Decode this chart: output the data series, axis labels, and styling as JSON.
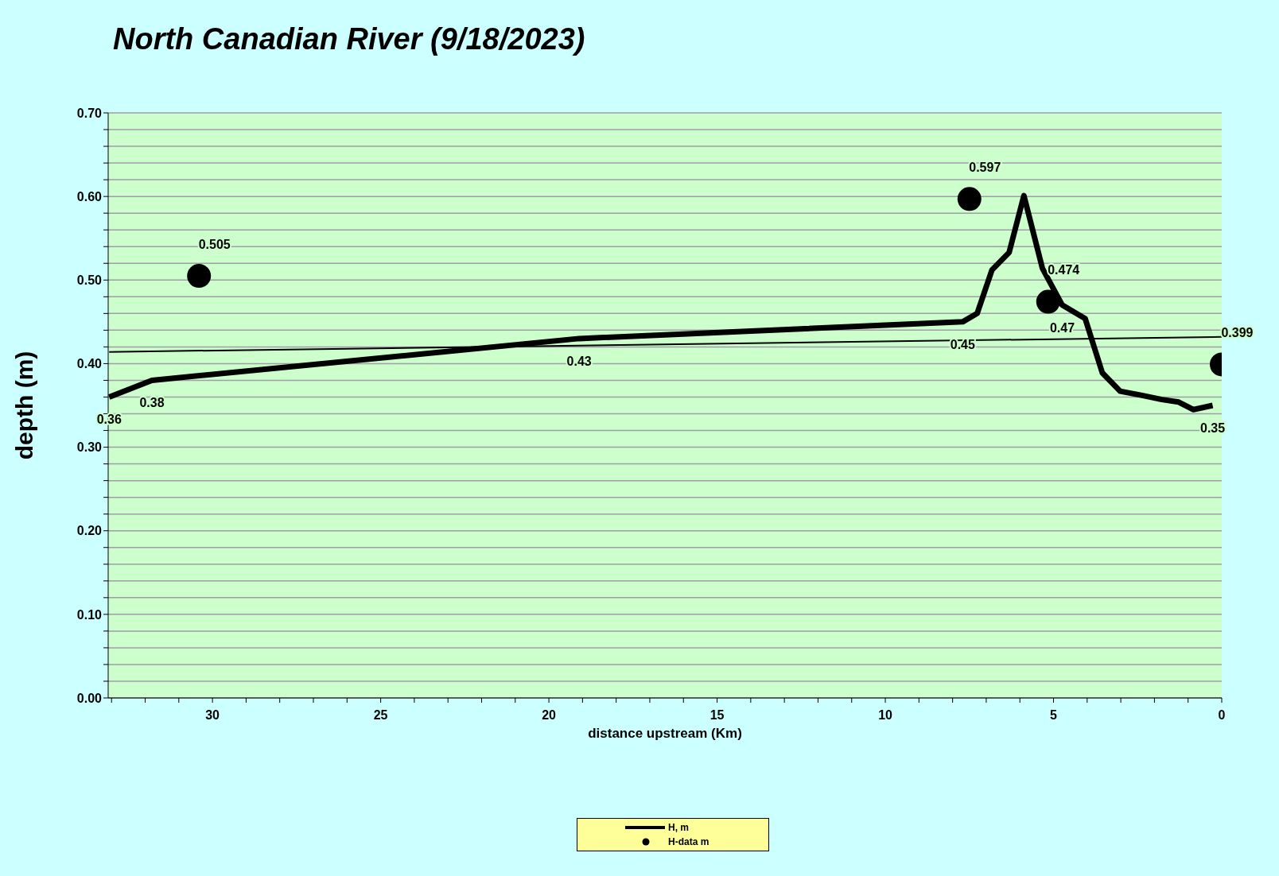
{
  "chart_data": {
    "type": "line",
    "title": "North Canadian River (9/18/2023)",
    "xlabel": "distance upstream (Km)",
    "ylabel": "depth (m)",
    "xlim": [
      33.1,
      0
    ],
    "xticks": [
      {
        "value": 33,
        "label": null
      },
      {
        "value": 32,
        "label": null
      },
      {
        "value": 31,
        "label": null
      },
      30,
      {
        "value": 29,
        "label": null
      },
      {
        "value": 28,
        "label": null
      },
      {
        "value": 27,
        "label": null
      },
      {
        "value": 26,
        "label": null
      },
      25,
      {
        "value": 24,
        "label": null
      },
      {
        "value": 23,
        "label": null
      },
      {
        "value": 22,
        "label": null
      },
      {
        "value": 21,
        "label": null
      },
      20,
      {
        "value": 19,
        "label": null
      },
      {
        "value": 18,
        "label": null
      },
      {
        "value": 17,
        "label": null
      },
      {
        "value": 16,
        "label": null
      },
      15,
      {
        "value": 14,
        "label": null
      },
      {
        "value": 13,
        "label": null
      },
      {
        "value": 12,
        "label": null
      },
      {
        "value": 11,
        "label": null
      },
      10,
      {
        "value": 9,
        "label": null
      },
      {
        "value": 8,
        "label": null
      },
      {
        "value": 7,
        "label": null
      },
      {
        "value": 6,
        "label": null
      },
      5,
      {
        "value": 4,
        "label": null
      },
      {
        "value": 3,
        "label": null
      },
      {
        "value": 2,
        "label": null
      },
      {
        "value": 1,
        "label": null
      },
      0
    ],
    "ylim": [
      0,
      0.7
    ],
    "yticks": [
      {
        "value": 0,
        "label": "0.00"
      },
      {
        "value": 0.02,
        "label": null
      },
      {
        "value": 0.04,
        "label": null
      },
      {
        "value": 0.06,
        "label": null
      },
      {
        "value": 0.08,
        "label": null
      },
      {
        "value": 0.1,
        "label": "0.10"
      },
      {
        "value": 0.12,
        "label": null
      },
      {
        "value": 0.14,
        "label": null
      },
      {
        "value": 0.16,
        "label": null
      },
      {
        "value": 0.18,
        "label": null
      },
      {
        "value": 0.2,
        "label": "0.20"
      },
      {
        "value": 0.22,
        "label": null
      },
      {
        "value": 0.24,
        "label": null
      },
      {
        "value": 0.26,
        "label": null
      },
      {
        "value": 0.28,
        "label": null
      },
      {
        "value": 0.3,
        "label": "0.30"
      },
      {
        "value": 0.32,
        "label": null
      },
      {
        "value": 0.34,
        "label": null
      },
      {
        "value": 0.36,
        "label": null
      },
      {
        "value": 0.38,
        "label": null
      },
      {
        "value": 0.4,
        "label": "0.40"
      },
      {
        "value": 0.42,
        "label": null
      },
      {
        "value": 0.44,
        "label": null
      },
      {
        "value": 0.46,
        "label": null
      },
      {
        "value": 0.48,
        "label": null
      },
      {
        "value": 0.5,
        "label": "0.50"
      },
      {
        "value": 0.52,
        "label": null
      },
      {
        "value": 0.54,
        "label": null
      },
      {
        "value": 0.56,
        "label": null
      },
      {
        "value": 0.58,
        "label": null
      },
      {
        "value": 0.6,
        "label": "0.60"
      },
      {
        "value": 0.62,
        "label": null
      },
      {
        "value": 0.64,
        "label": null
      },
      {
        "value": 0.66,
        "label": null
      },
      {
        "value": 0.68,
        "label": null
      },
      {
        "value": 0.7,
        "label": "0.70"
      }
    ],
    "grid": "y",
    "legend": "bottom",
    "series": [
      {
        "name": "H, m",
        "color": "#000000",
        "marker": "none",
        "x": [
          33.07,
          31.8,
          19.1,
          7.7,
          7.27,
          6.83,
          6.32,
          5.88,
          5.33,
          4.74,
          4.06,
          3.55,
          3.02,
          2.37,
          1.78,
          1.28,
          0.84,
          0.27
        ],
        "values": [
          0.36,
          0.38,
          0.43,
          0.45,
          0.46,
          0.512,
          0.533,
          0.601,
          0.514,
          0.47,
          0.454,
          0.389,
          0.367,
          0.362,
          0.357,
          0.354,
          0.345,
          0.35
        ],
        "value_labels": [
          "0.36",
          "0.38",
          "0.43",
          "0.45",
          null,
          null,
          null,
          null,
          null,
          "0.47",
          null,
          null,
          null,
          null,
          null,
          null,
          null,
          "0.35"
        ]
      },
      {
        "name": "H-data m",
        "type": "scatter",
        "color": "#000000",
        "marker": "circle",
        "x": [
          30.4,
          7.5,
          5.16,
          0
        ],
        "values": [
          0.505,
          0.597,
          0.474,
          0.399
        ],
        "value_labels": [
          "0.505",
          "0.597",
          "0.474",
          "0.399"
        ]
      },
      {
        "color": "#000000",
        "marker": "none",
        "x": [
          33.07,
          0
        ],
        "values": [
          0.414,
          0.432
        ]
      }
    ]
  }
}
